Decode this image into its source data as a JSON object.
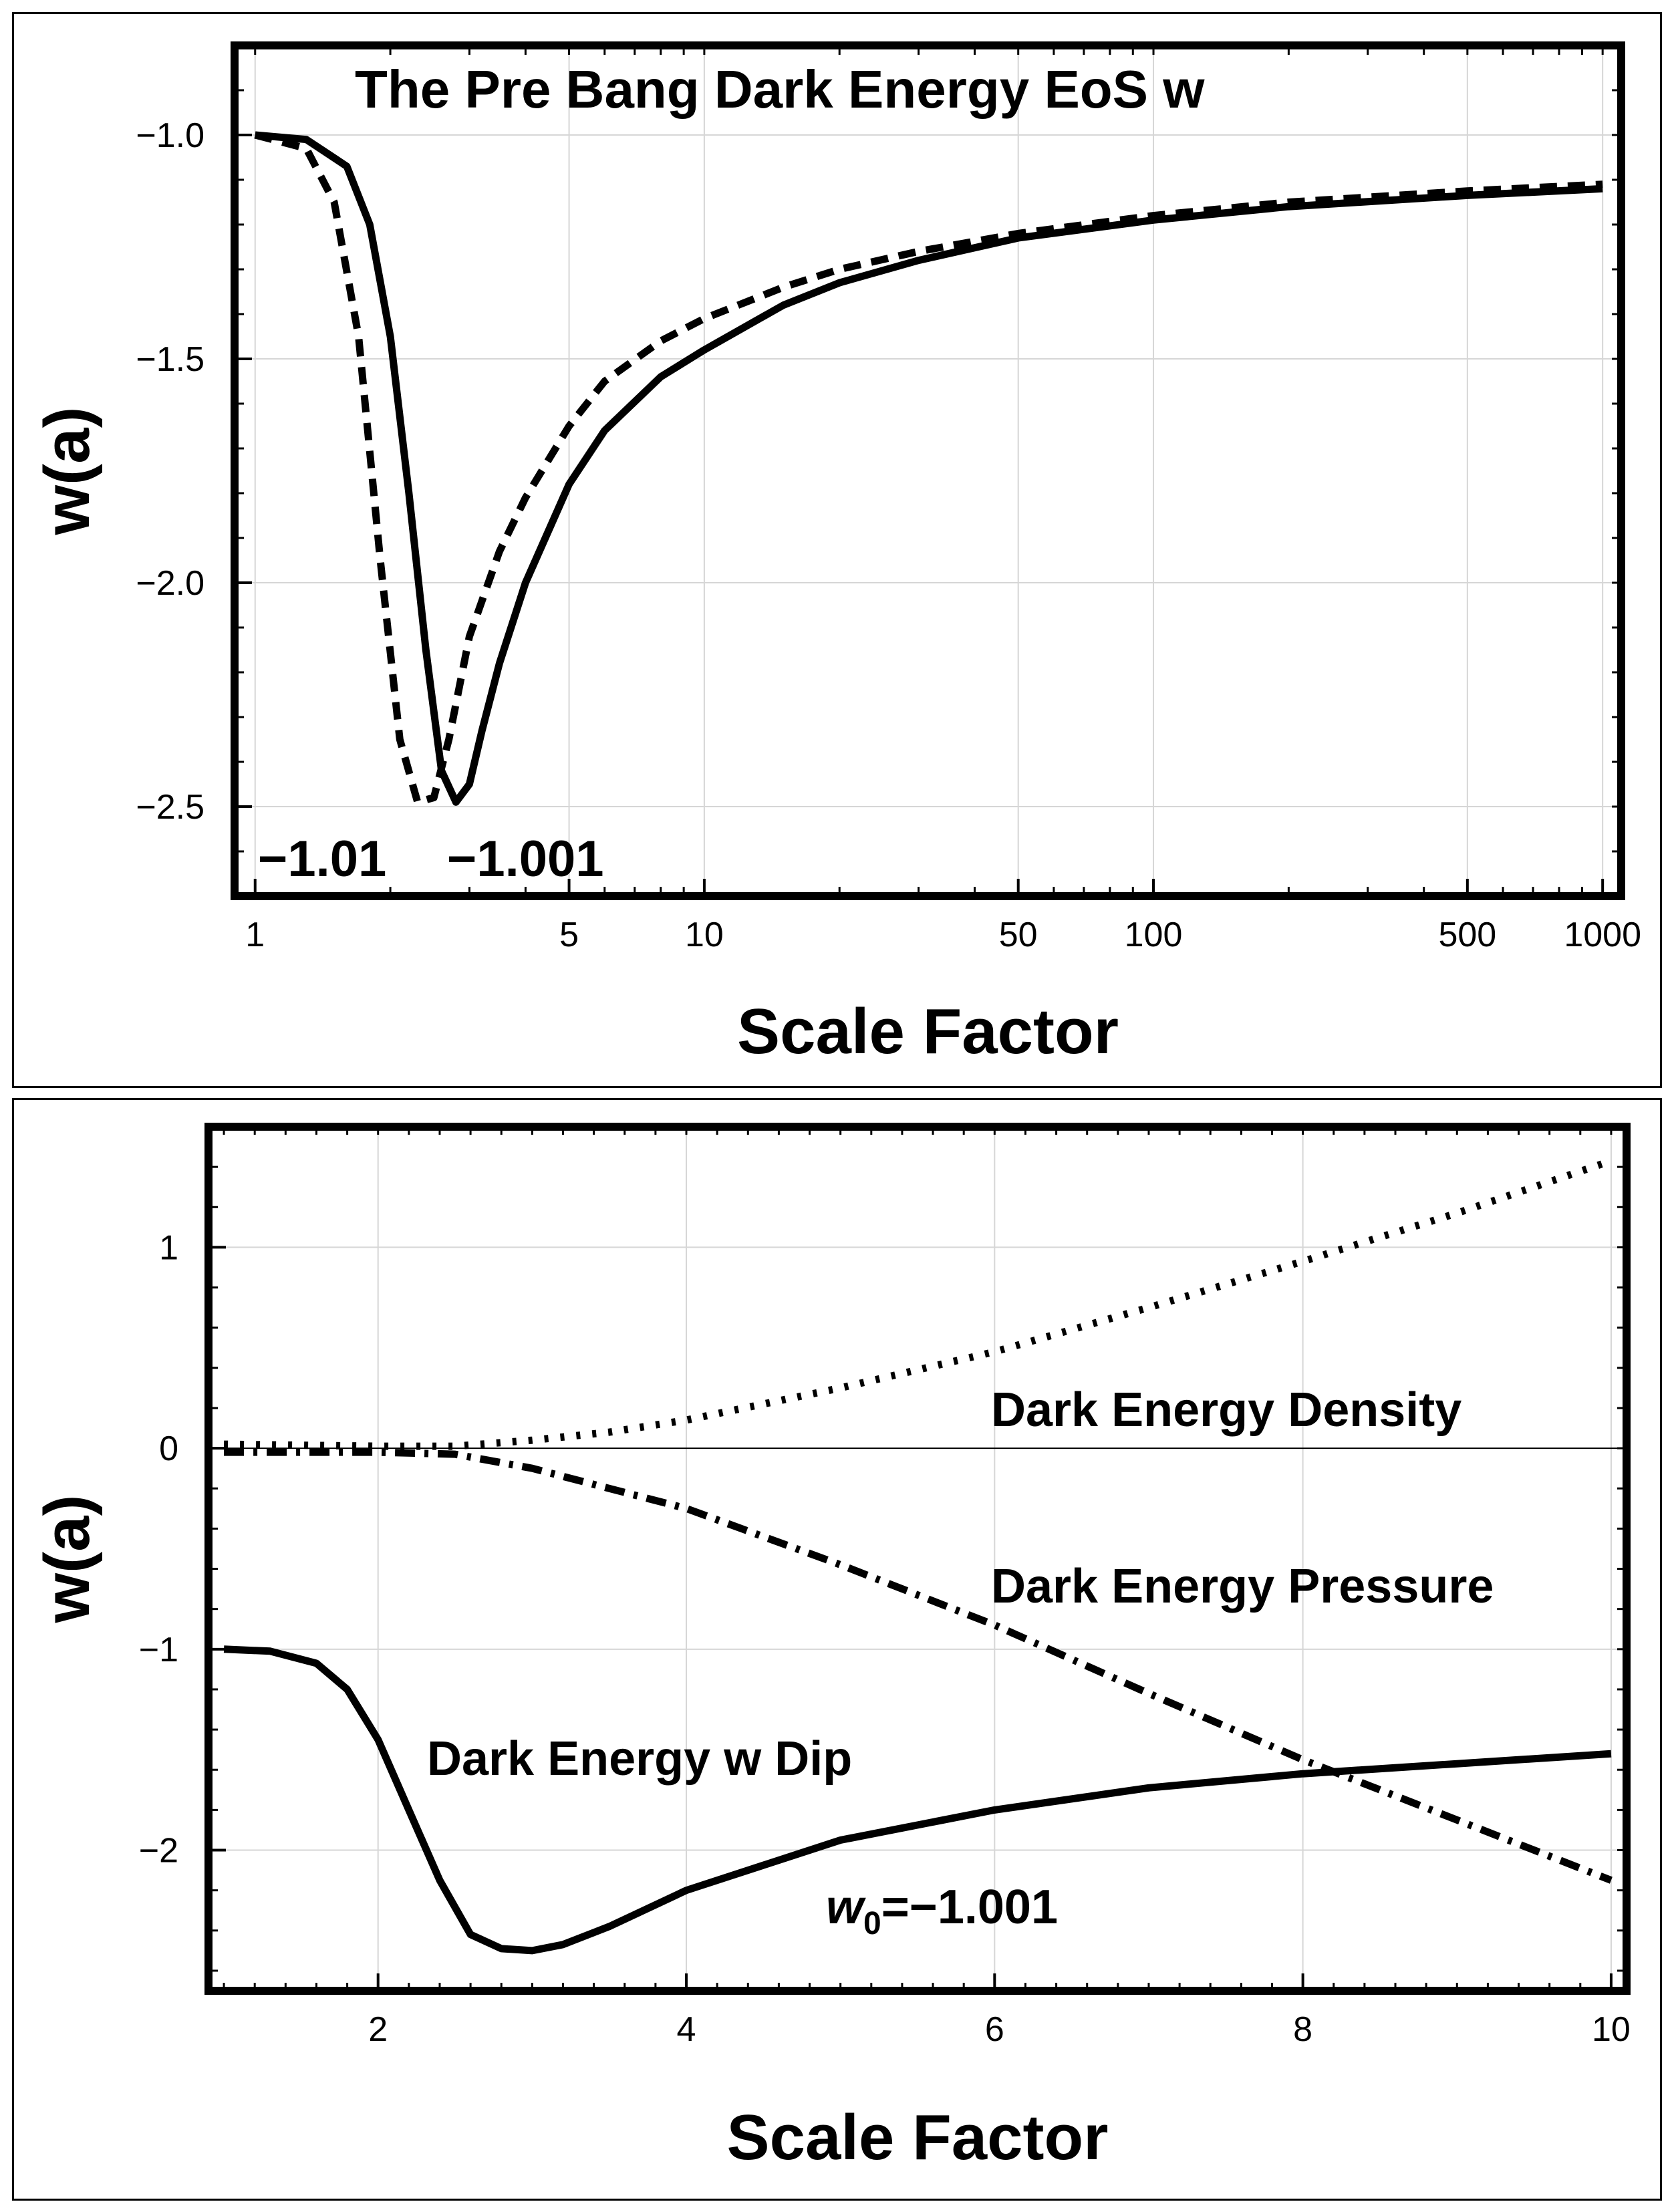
{
  "chart_data": [
    {
      "type": "line",
      "title": "The Pre Bang Dark Energy EoS w",
      "xlabel": "Scale Factor",
      "ylabel": "w(a)",
      "xscale": "log",
      "xlim": [
        0.9,
        1100
      ],
      "ylim": [
        -2.7,
        -0.8
      ],
      "grid": true,
      "xticks": [
        1,
        5,
        10,
        50,
        100,
        500,
        1000
      ],
      "xtick_labels": [
        "1",
        "5",
        "10",
        "50",
        "100",
        "500",
        "1000"
      ],
      "yticks": [
        -1.0,
        -1.5,
        -2.0,
        -2.5
      ],
      "ytick_labels": [
        "−1.0",
        "−1.5",
        "−2.0",
        "−2.5"
      ],
      "x_grid": [
        1,
        5,
        10,
        50,
        100,
        500,
        1000
      ],
      "y_grid": [
        -1.0,
        -1.5,
        -2.0,
        -2.5
      ],
      "annotations": [
        "−1.01",
        "−1.001"
      ],
      "series": [
        {
          "name": "−1.01",
          "style": "dashed",
          "x": [
            1,
            1.3,
            1.5,
            1.7,
            1.9,
            2.1,
            2.3,
            2.5,
            2.7,
            3.0,
            3.5,
            4,
            5,
            6,
            8,
            10,
            15,
            20,
            30,
            50,
            100,
            200,
            500,
            1000
          ],
          "y": [
            -1.0,
            -1.03,
            -1.15,
            -1.45,
            -1.95,
            -2.35,
            -2.49,
            -2.48,
            -2.35,
            -2.12,
            -1.93,
            -1.81,
            -1.65,
            -1.55,
            -1.46,
            -1.41,
            -1.34,
            -1.3,
            -1.26,
            -1.22,
            -1.18,
            -1.15,
            -1.125,
            -1.11
          ]
        },
        {
          "name": "−1.001",
          "style": "solid",
          "x": [
            1,
            1.3,
            1.6,
            1.8,
            2.0,
            2.2,
            2.4,
            2.6,
            2.8,
            3.0,
            3.2,
            3.5,
            4,
            5,
            6,
            8,
            10,
            15,
            20,
            30,
            50,
            100,
            200,
            500,
            1000
          ],
          "y": [
            -1.0,
            -1.01,
            -1.07,
            -1.2,
            -1.45,
            -1.8,
            -2.15,
            -2.42,
            -2.49,
            -2.45,
            -2.33,
            -2.18,
            -2.0,
            -1.78,
            -1.66,
            -1.54,
            -1.48,
            -1.38,
            -1.33,
            -1.28,
            -1.23,
            -1.19,
            -1.16,
            -1.135,
            -1.12
          ]
        }
      ]
    },
    {
      "type": "line",
      "title": "",
      "xlabel": "Scale Factor",
      "ylabel": "w(a)",
      "xlim": [
        0.9,
        10.1
      ],
      "ylim": [
        -2.7,
        1.6
      ],
      "grid": true,
      "xticks": [
        2,
        4,
        6,
        8,
        10
      ],
      "xtick_labels": [
        "2",
        "4",
        "6",
        "8",
        "10"
      ],
      "yticks": [
        1,
        0,
        -1,
        -2
      ],
      "ytick_labels": [
        "1",
        "0",
        "−1",
        "−2"
      ],
      "x_grid": [
        2,
        4,
        6,
        8,
        10
      ],
      "y_grid": [
        1,
        -1,
        -2
      ],
      "annotations": [
        "Dark Energy Density",
        "Dark Energy Pressure",
        "Dark Energy w Dip"
      ],
      "w0_label": {
        "symbol": "w",
        "subscript": "0",
        "value": "=−1.001"
      },
      "series": [
        {
          "name": "Dark Energy Density",
          "style": "dotted",
          "x": [
            1,
            2,
            2.5,
            3,
            3.5,
            4,
            5,
            6,
            7,
            8,
            9,
            10
          ],
          "y": [
            0.02,
            0.01,
            0.01,
            0.04,
            0.08,
            0.14,
            0.3,
            0.48,
            0.7,
            0.93,
            1.17,
            1.43
          ]
        },
        {
          "name": "Dark Energy Pressure",
          "style": "dashdot",
          "x": [
            1,
            2,
            2.5,
            3,
            3.5,
            4,
            5,
            6,
            7,
            8,
            9,
            10
          ],
          "y": [
            -0.02,
            -0.02,
            -0.03,
            -0.1,
            -0.2,
            -0.3,
            -0.58,
            -0.88,
            -1.22,
            -1.55,
            -1.85,
            -2.15
          ]
        },
        {
          "name": "Dark Energy w Dip",
          "style": "solid",
          "x": [
            1,
            1.3,
            1.6,
            1.8,
            2.0,
            2.2,
            2.4,
            2.6,
            2.8,
            3.0,
            3.2,
            3.5,
            4,
            5,
            6,
            7,
            8,
            9,
            10
          ],
          "y": [
            -1.0,
            -1.01,
            -1.07,
            -1.2,
            -1.45,
            -1.8,
            -2.15,
            -2.42,
            -2.49,
            -2.5,
            -2.47,
            -2.38,
            -2.2,
            -1.95,
            -1.8,
            -1.69,
            -1.62,
            -1.57,
            -1.52
          ]
        }
      ]
    }
  ]
}
